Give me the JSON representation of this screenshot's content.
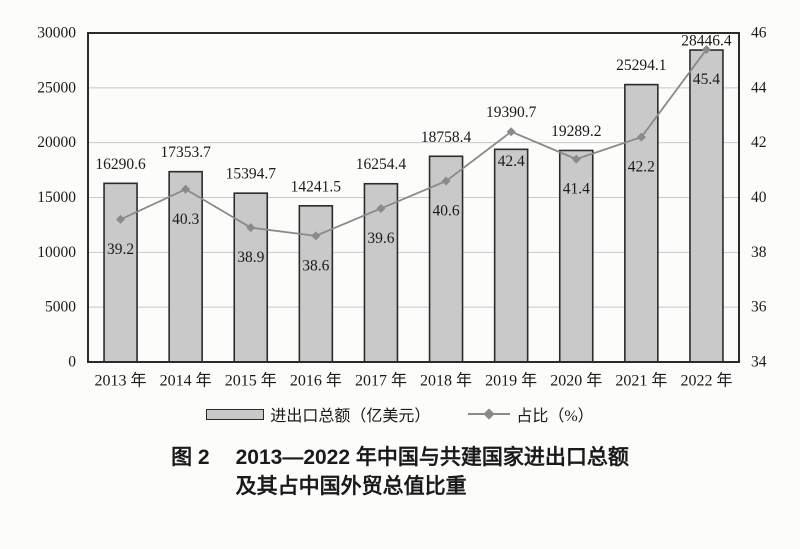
{
  "figure": {
    "caption_prefix": "图 2",
    "caption_line1": "2013—2022 年中国与共建国家进出口总额",
    "caption_line2": "及其占中国外贸总值比重"
  },
  "legend": {
    "bar_label": "进出口总额（亿美元）",
    "line_label": "占比（%）"
  },
  "chart_data": {
    "type": "bar",
    "subtype": "bar+line combo, dual axis",
    "title": "图 2 2013—2022 年中国与共建国家进出口总额及其占中国外贸总值比重",
    "categories": [
      "2013 年",
      "2014 年",
      "2015 年",
      "2016 年",
      "2017 年",
      "2018 年",
      "2019 年",
      "2020 年",
      "2021 年",
      "2022 年"
    ],
    "series": [
      {
        "name": "进出口总额（亿美元）",
        "type": "bar",
        "axis": "left",
        "values": [
          16290.6,
          17353.7,
          15394.7,
          14241.5,
          16254.4,
          18758.4,
          19390.7,
          19289.2,
          25294.1,
          28446.4
        ]
      },
      {
        "name": "占比（%）",
        "type": "line",
        "axis": "right",
        "values": [
          39.2,
          40.3,
          38.9,
          38.6,
          39.6,
          40.6,
          42.4,
          41.4,
          42.2,
          45.4
        ]
      }
    ],
    "left_axis": {
      "range": [
        0,
        30000
      ],
      "ticks": [
        0,
        5000,
        10000,
        15000,
        20000,
        25000,
        30000
      ]
    },
    "right_axis": {
      "range": [
        34,
        46
      ],
      "ticks": [
        34,
        36,
        38,
        40,
        42,
        44,
        46
      ]
    },
    "grid": true,
    "legend_position": "bottom",
    "colors": {
      "bar_fill": "#c9c9c9",
      "bar_border": "#2b2b2b",
      "line": "#8a8a8a",
      "grid": "#c9c9c9",
      "plot_border": "#2b2b2b",
      "text": "#1a1a1a",
      "background": "#fcfcfa"
    }
  }
}
